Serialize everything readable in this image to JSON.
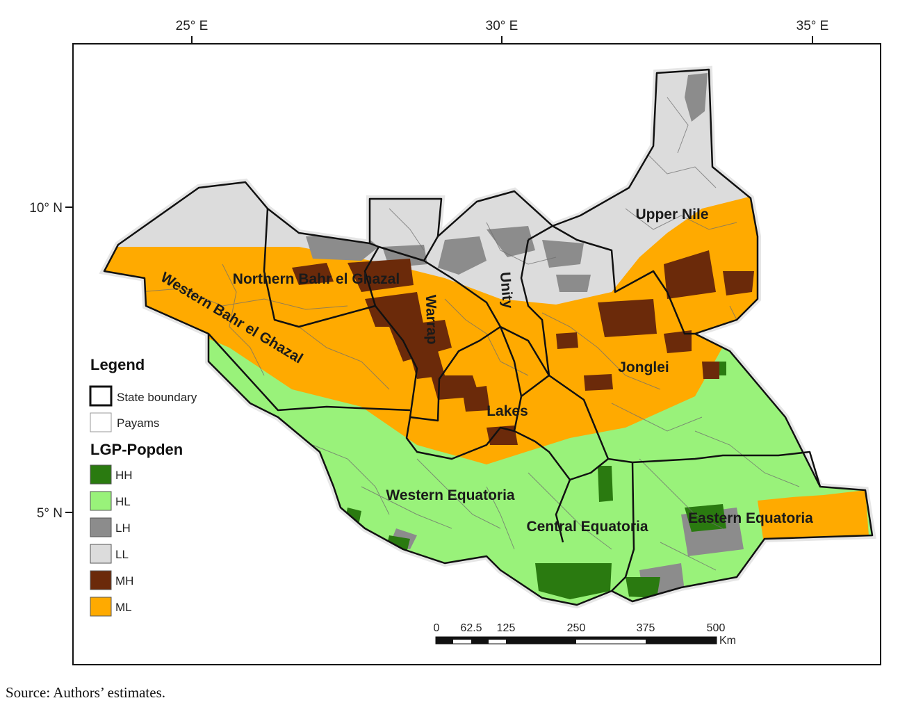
{
  "map": {
    "longitude_ticks": [
      "25° E",
      "30° E",
      "35° E"
    ],
    "latitude_ticks": [
      "10° N",
      "5° N"
    ],
    "state_labels": [
      {
        "id": "upper-nile",
        "text": "Upper Nile"
      },
      {
        "id": "northern-bahr-el-ghazal",
        "text": "Northern Bahr el Ghazal"
      },
      {
        "id": "western-bahr-el-ghazal",
        "text": "Western Bahr el Ghazal"
      },
      {
        "id": "warrap",
        "text": "Warrap"
      },
      {
        "id": "unity",
        "text": "Unity"
      },
      {
        "id": "jonglei",
        "text": "Jonglei"
      },
      {
        "id": "lakes",
        "text": "Lakes"
      },
      {
        "id": "western-equatoria",
        "text": "Western Equatoria"
      },
      {
        "id": "central-equatoria",
        "text": "Central Equatoria"
      },
      {
        "id": "eastern-equatoria",
        "text": "Eastern Equatoria"
      }
    ],
    "legend": {
      "title": "Legend",
      "boundaries": [
        {
          "label": "State boundary",
          "style": "thick"
        },
        {
          "label": "Payams",
          "style": "thin"
        }
      ],
      "class_title": "LGP-Popden",
      "classes": [
        {
          "label": "HH",
          "color": "#2a7a10"
        },
        {
          "label": "HL",
          "color": "#99f27a"
        },
        {
          "label": "LH",
          "color": "#8c8c8c"
        },
        {
          "label": "LL",
          "color": "#dcdcdc"
        },
        {
          "label": "MH",
          "color": "#6b2a0a"
        },
        {
          "label": "ML",
          "color": "#ffaa00"
        }
      ]
    },
    "scale_bar": {
      "ticks": [
        "0",
        "62.5",
        "125",
        "250",
        "375",
        "500"
      ],
      "unit": "Km"
    }
  },
  "source_note": "Source: Authors’ estimates."
}
